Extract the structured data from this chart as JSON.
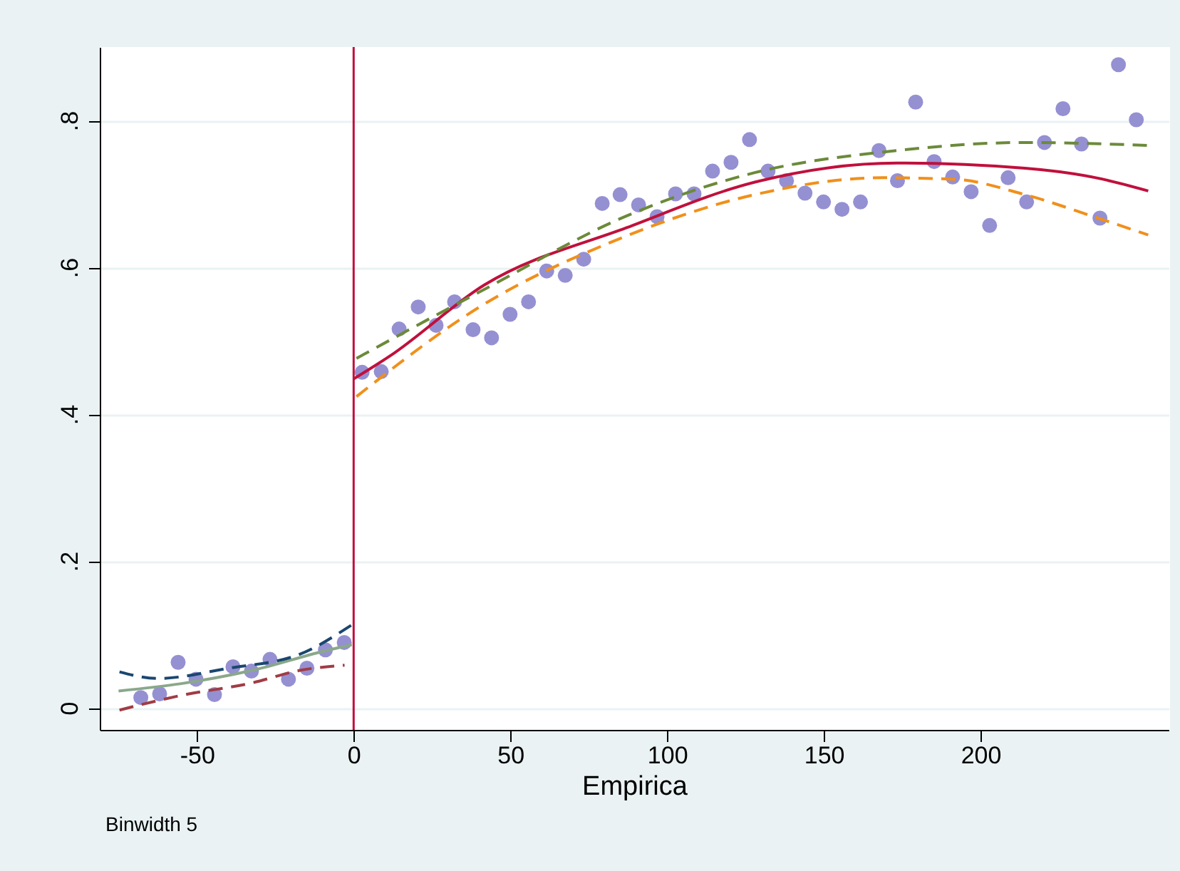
{
  "chart_data": {
    "type": "scatter",
    "xlabel": "Empirica",
    "annotations": [
      "Binwidth 5"
    ],
    "xlim": [
      -81,
      260
    ],
    "ylim": [
      -0.03,
      0.9
    ],
    "xticks": [
      -50,
      0,
      50,
      100,
      150,
      200
    ],
    "yticks": [
      0,
      {
        "value": 0.2,
        "label": ".2"
      },
      {
        "value": 0.4,
        "label": ".4"
      },
      {
        "value": 0.6,
        "label": ".6"
      },
      {
        "value": 0.8,
        "label": ".8"
      }
    ],
    "grid": "y",
    "ref_lines": [
      {
        "axis": "x",
        "value": 0,
        "color": "#c0103c"
      }
    ],
    "series": [
      {
        "marker": "circle",
        "color": "#9590d2",
        "x": [
          -67.9,
          -61.9,
          -56.0,
          -50.3,
          -44.4,
          -38.5,
          -32.6,
          -26.7,
          -20.8,
          -14.9,
          -9.0,
          -3.0,
          2.7,
          8.8,
          14.5,
          20.6,
          26.3,
          32.2,
          38.1,
          44.0,
          49.9,
          55.8,
          61.6,
          67.5,
          73.4,
          79.3,
          85.0,
          90.9,
          96.8,
          102.7,
          108.6,
          114.5,
          120.4,
          126.3,
          132.2,
          138.1,
          144.0,
          149.9,
          155.8,
          161.7,
          167.6,
          173.5,
          179.3,
          185.2,
          191.1,
          197.0,
          202.9,
          208.8,
          214.7,
          220.4,
          226.3,
          232.2,
          238.1,
          244.0,
          249.7
        ],
        "values": [
          0.014,
          0.019,
          0.062,
          0.039,
          0.018,
          0.056,
          0.05,
          0.066,
          0.039,
          0.054,
          0.079,
          0.089,
          0.457,
          0.458,
          0.516,
          0.546,
          0.521,
          0.553,
          0.515,
          0.504,
          0.536,
          0.553,
          0.595,
          0.589,
          0.611,
          0.687,
          0.699,
          0.685,
          0.669,
          0.7,
          0.7,
          0.731,
          0.743,
          0.774,
          0.731,
          0.718,
          0.701,
          0.689,
          0.679,
          0.689,
          0.759,
          0.718,
          0.825,
          0.744,
          0.723,
          0.703,
          0.657,
          0.722,
          0.689,
          0.77,
          0.816,
          0.768,
          0.667,
          0.876,
          0.801
        ]
      },
      {
        "type": "line",
        "line_style": "solid",
        "color": "#8aa88a",
        "x": [
          -75,
          -55,
          -32.4,
          -9.7,
          -0.6
        ],
        "values": [
          0.023,
          0.033,
          0.051,
          0.077,
          0.086
        ]
      },
      {
        "type": "line",
        "line_style": "dashed",
        "color": "#1a476f",
        "x": [
          -74.7,
          -62.6,
          -39.9,
          -17.2,
          -0.6
        ],
        "values": [
          0.049,
          0.04,
          0.054,
          0.073,
          0.113
        ]
      },
      {
        "type": "line",
        "line_style": "dashed",
        "color": "#a03c44",
        "x": [
          -74.7,
          -55,
          -32.4,
          -17.2,
          -2.9
        ],
        "values": [
          -0.003,
          0.017,
          0.034,
          0.051,
          0.058
        ]
      },
      {
        "type": "line",
        "line_style": "solid",
        "color": "#c0103c",
        "x": [
          0,
          11.5,
          41.7,
          87.1,
          128,
          173.3,
          214.2,
          236.8,
          253.5
        ],
        "values": [
          0.448,
          0.479,
          0.576,
          0.654,
          0.716,
          0.742,
          0.735,
          0.722,
          0.704
        ]
      },
      {
        "type": "line",
        "line_style": "dashed",
        "color": "#6b8a3a",
        "x": [
          0.9,
          41.7,
          87.1,
          128,
          173.3,
          214.2,
          253.5
        ],
        "values": [
          0.476,
          0.57,
          0.67,
          0.729,
          0.759,
          0.77,
          0.766
        ]
      },
      {
        "type": "line",
        "line_style": "dashed",
        "color": "#f0901b",
        "x": [
          0.9,
          41.7,
          84.3,
          128,
          168.8,
          191.5,
          214.2,
          236.8,
          253.5
        ],
        "values": [
          0.424,
          0.55,
          0.638,
          0.699,
          0.722,
          0.72,
          0.699,
          0.668,
          0.644
        ]
      }
    ]
  }
}
